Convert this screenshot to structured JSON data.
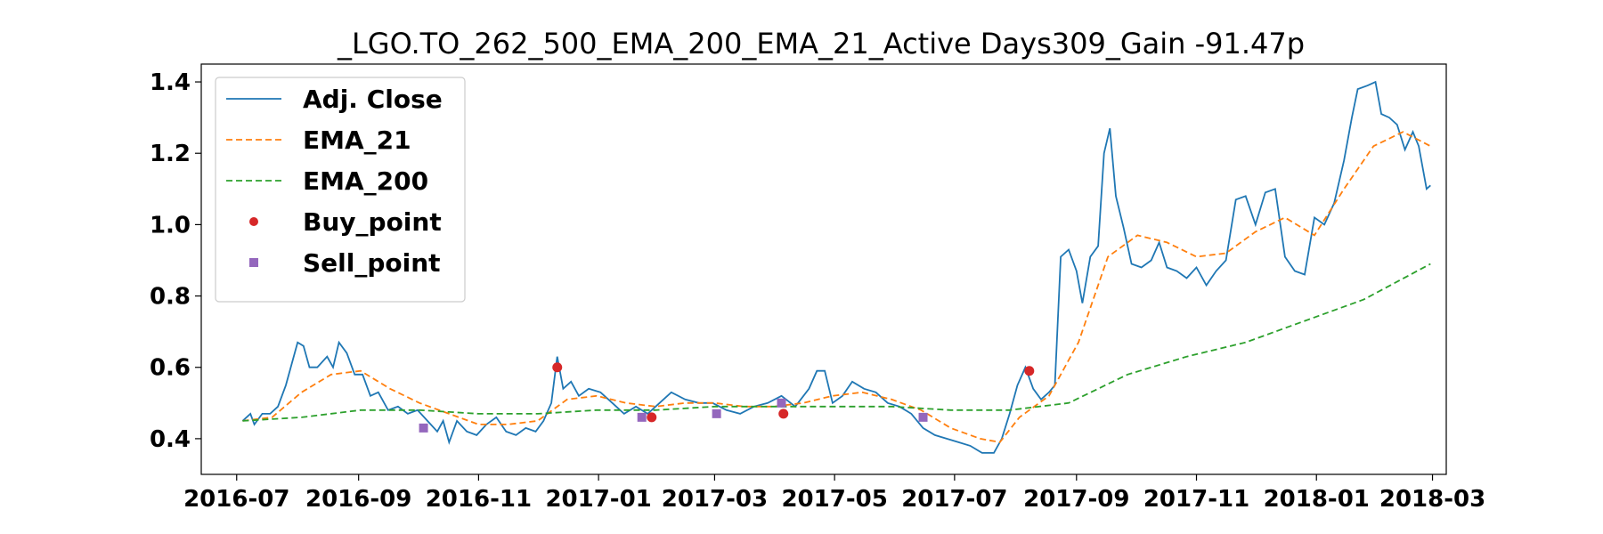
{
  "chart_data": {
    "type": "line",
    "title": "_LGO.TO_262_500_EMA_200_EMA_21_Active Days309_Gain -91.47p",
    "xlabel": "",
    "ylabel": "",
    "xlim": [
      "2016-06-13",
      "2018-03-08"
    ],
    "ylim": [
      0.3,
      1.45
    ],
    "x_ticks": [
      "2016-07",
      "2016-09",
      "2016-11",
      "2017-01",
      "2017-03",
      "2017-05",
      "2017-07",
      "2017-09",
      "2017-11",
      "2018-01",
      "2018-03"
    ],
    "y_ticks": [
      "0.4",
      "0.6",
      "0.8",
      "1.0",
      "1.2",
      "1.4"
    ],
    "legend_position": "upper-left",
    "grid": false,
    "series": [
      {
        "name": "Adj. Close",
        "style": "solid",
        "color": "#1f77b4",
        "points": [
          [
            "2016-07-04",
            0.45
          ],
          [
            "2016-07-08",
            0.47
          ],
          [
            "2016-07-10",
            0.44
          ],
          [
            "2016-07-14",
            0.47
          ],
          [
            "2016-07-18",
            0.47
          ],
          [
            "2016-07-22",
            0.49
          ],
          [
            "2016-07-26",
            0.55
          ],
          [
            "2016-07-29",
            0.61
          ],
          [
            "2016-08-01",
            0.67
          ],
          [
            "2016-08-04",
            0.66
          ],
          [
            "2016-08-07",
            0.6
          ],
          [
            "2016-08-11",
            0.6
          ],
          [
            "2016-08-16",
            0.63
          ],
          [
            "2016-08-19",
            0.6
          ],
          [
            "2016-08-22",
            0.67
          ],
          [
            "2016-08-26",
            0.64
          ],
          [
            "2016-08-30",
            0.58
          ],
          [
            "2016-09-03",
            0.58
          ],
          [
            "2016-09-07",
            0.52
          ],
          [
            "2016-09-11",
            0.53
          ],
          [
            "2016-09-16",
            0.48
          ],
          [
            "2016-09-21",
            0.49
          ],
          [
            "2016-09-26",
            0.47
          ],
          [
            "2016-10-01",
            0.48
          ],
          [
            "2016-10-06",
            0.45
          ],
          [
            "2016-10-11",
            0.42
          ],
          [
            "2016-10-14",
            0.45
          ],
          [
            "2016-10-17",
            0.39
          ],
          [
            "2016-10-21",
            0.45
          ],
          [
            "2016-10-26",
            0.42
          ],
          [
            "2016-10-31",
            0.41
          ],
          [
            "2016-11-05",
            0.44
          ],
          [
            "2016-11-10",
            0.46
          ],
          [
            "2016-11-15",
            0.42
          ],
          [
            "2016-11-20",
            0.41
          ],
          [
            "2016-11-25",
            0.43
          ],
          [
            "2016-11-30",
            0.42
          ],
          [
            "2016-12-04",
            0.45
          ],
          [
            "2016-12-08",
            0.5
          ],
          [
            "2016-12-11",
            0.63
          ],
          [
            "2016-12-14",
            0.54
          ],
          [
            "2016-12-18",
            0.56
          ],
          [
            "2016-12-22",
            0.52
          ],
          [
            "2016-12-27",
            0.54
          ],
          [
            "2017-01-02",
            0.53
          ],
          [
            "2017-01-08",
            0.5
          ],
          [
            "2017-01-14",
            0.47
          ],
          [
            "2017-01-20",
            0.49
          ],
          [
            "2017-01-26",
            0.47
          ],
          [
            "2017-02-01",
            0.5
          ],
          [
            "2017-02-07",
            0.53
          ],
          [
            "2017-02-14",
            0.51
          ],
          [
            "2017-02-21",
            0.5
          ],
          [
            "2017-02-28",
            0.5
          ],
          [
            "2017-03-07",
            0.48
          ],
          [
            "2017-03-14",
            0.47
          ],
          [
            "2017-03-21",
            0.49
          ],
          [
            "2017-03-28",
            0.5
          ],
          [
            "2017-04-04",
            0.52
          ],
          [
            "2017-04-11",
            0.49
          ],
          [
            "2017-04-18",
            0.54
          ],
          [
            "2017-04-22",
            0.59
          ],
          [
            "2017-04-26",
            0.59
          ],
          [
            "2017-04-30",
            0.5
          ],
          [
            "2017-05-05",
            0.52
          ],
          [
            "2017-05-10",
            0.56
          ],
          [
            "2017-05-16",
            0.54
          ],
          [
            "2017-05-22",
            0.53
          ],
          [
            "2017-05-28",
            0.5
          ],
          [
            "2017-06-03",
            0.49
          ],
          [
            "2017-06-09",
            0.47
          ],
          [
            "2017-06-15",
            0.43
          ],
          [
            "2017-06-21",
            0.41
          ],
          [
            "2017-06-27",
            0.4
          ],
          [
            "2017-07-03",
            0.39
          ],
          [
            "2017-07-09",
            0.38
          ],
          [
            "2017-07-15",
            0.36
          ],
          [
            "2017-07-21",
            0.36
          ],
          [
            "2017-07-25",
            0.4
          ],
          [
            "2017-07-29",
            0.47
          ],
          [
            "2017-08-02",
            0.55
          ],
          [
            "2017-08-06",
            0.6
          ],
          [
            "2017-08-10",
            0.54
          ],
          [
            "2017-08-14",
            0.51
          ],
          [
            "2017-08-18",
            0.53
          ],
          [
            "2017-08-21",
            0.55
          ],
          [
            "2017-08-24",
            0.91
          ],
          [
            "2017-08-28",
            0.93
          ],
          [
            "2017-09-01",
            0.87
          ],
          [
            "2017-09-04",
            0.78
          ],
          [
            "2017-09-08",
            0.91
          ],
          [
            "2017-09-12",
            0.94
          ],
          [
            "2017-09-15",
            1.2
          ],
          [
            "2017-09-18",
            1.27
          ],
          [
            "2017-09-21",
            1.08
          ],
          [
            "2017-09-25",
            0.99
          ],
          [
            "2017-09-29",
            0.89
          ],
          [
            "2017-10-04",
            0.88
          ],
          [
            "2017-10-09",
            0.9
          ],
          [
            "2017-10-13",
            0.95
          ],
          [
            "2017-10-17",
            0.88
          ],
          [
            "2017-10-22",
            0.87
          ],
          [
            "2017-10-27",
            0.85
          ],
          [
            "2017-11-01",
            0.88
          ],
          [
            "2017-11-06",
            0.83
          ],
          [
            "2017-11-11",
            0.87
          ],
          [
            "2017-11-16",
            0.9
          ],
          [
            "2017-11-21",
            1.07
          ],
          [
            "2017-11-26",
            1.08
          ],
          [
            "2017-12-01",
            1.0
          ],
          [
            "2017-12-06",
            1.09
          ],
          [
            "2017-12-11",
            1.1
          ],
          [
            "2017-12-16",
            0.91
          ],
          [
            "2017-12-21",
            0.87
          ],
          [
            "2017-12-26",
            0.86
          ],
          [
            "2017-12-31",
            1.02
          ],
          [
            "2018-01-05",
            1.0
          ],
          [
            "2018-01-10",
            1.06
          ],
          [
            "2018-01-15",
            1.18
          ],
          [
            "2018-01-19",
            1.3
          ],
          [
            "2018-01-22",
            1.38
          ],
          [
            "2018-01-27",
            1.39
          ],
          [
            "2018-01-31",
            1.4
          ],
          [
            "2018-02-03",
            1.31
          ],
          [
            "2018-02-07",
            1.3
          ],
          [
            "2018-02-11",
            1.28
          ],
          [
            "2018-02-15",
            1.21
          ],
          [
            "2018-02-19",
            1.26
          ],
          [
            "2018-02-22",
            1.22
          ],
          [
            "2018-02-26",
            1.1
          ],
          [
            "2018-02-28",
            1.11
          ]
        ]
      },
      {
        "name": "EMA_21",
        "style": "dashed",
        "color": "#ff7f0e",
        "points": [
          [
            "2016-07-04",
            0.45
          ],
          [
            "2016-07-19",
            0.46
          ],
          [
            "2016-08-03",
            0.53
          ],
          [
            "2016-08-18",
            0.58
          ],
          [
            "2016-09-02",
            0.59
          ],
          [
            "2016-09-17",
            0.54
          ],
          [
            "2016-10-02",
            0.5
          ],
          [
            "2016-10-17",
            0.47
          ],
          [
            "2016-11-01",
            0.44
          ],
          [
            "2016-11-16",
            0.44
          ],
          [
            "2016-12-01",
            0.45
          ],
          [
            "2016-12-16",
            0.51
          ],
          [
            "2016-12-31",
            0.52
          ],
          [
            "2017-01-15",
            0.5
          ],
          [
            "2017-01-30",
            0.49
          ],
          [
            "2017-02-14",
            0.5
          ],
          [
            "2017-03-01",
            0.5
          ],
          [
            "2017-03-16",
            0.49
          ],
          [
            "2017-03-31",
            0.49
          ],
          [
            "2017-04-15",
            0.5
          ],
          [
            "2017-04-30",
            0.52
          ],
          [
            "2017-05-15",
            0.53
          ],
          [
            "2017-05-30",
            0.51
          ],
          [
            "2017-06-14",
            0.48
          ],
          [
            "2017-06-29",
            0.43
          ],
          [
            "2017-07-14",
            0.4
          ],
          [
            "2017-07-24",
            0.39
          ],
          [
            "2017-08-03",
            0.46
          ],
          [
            "2017-08-18",
            0.52
          ],
          [
            "2017-09-02",
            0.67
          ],
          [
            "2017-09-17",
            0.91
          ],
          [
            "2017-10-02",
            0.97
          ],
          [
            "2017-10-17",
            0.95
          ],
          [
            "2017-11-01",
            0.91
          ],
          [
            "2017-11-16",
            0.92
          ],
          [
            "2017-12-01",
            0.98
          ],
          [
            "2017-12-16",
            1.02
          ],
          [
            "2017-12-31",
            0.97
          ],
          [
            "2018-01-15",
            1.1
          ],
          [
            "2018-01-30",
            1.22
          ],
          [
            "2018-02-14",
            1.26
          ],
          [
            "2018-02-28",
            1.22
          ]
        ]
      },
      {
        "name": "EMA_200",
        "style": "dashed",
        "color": "#2ca02c",
        "points": [
          [
            "2016-07-04",
            0.45
          ],
          [
            "2016-08-03",
            0.46
          ],
          [
            "2016-09-02",
            0.48
          ],
          [
            "2016-10-02",
            0.48
          ],
          [
            "2016-11-01",
            0.47
          ],
          [
            "2016-12-01",
            0.47
          ],
          [
            "2016-12-31",
            0.48
          ],
          [
            "2017-01-30",
            0.48
          ],
          [
            "2017-03-01",
            0.49
          ],
          [
            "2017-03-31",
            0.49
          ],
          [
            "2017-04-30",
            0.49
          ],
          [
            "2017-05-30",
            0.49
          ],
          [
            "2017-06-29",
            0.48
          ],
          [
            "2017-07-29",
            0.48
          ],
          [
            "2017-08-28",
            0.5
          ],
          [
            "2017-09-27",
            0.58
          ],
          [
            "2017-10-27",
            0.63
          ],
          [
            "2017-11-26",
            0.67
          ],
          [
            "2017-12-26",
            0.73
          ],
          [
            "2018-01-25",
            0.79
          ],
          [
            "2018-02-28",
            0.89
          ]
        ]
      }
    ],
    "markers": [
      {
        "name": "Buy_point",
        "shape": "circle",
        "color": "#d62728",
        "points": [
          [
            "2016-12-11",
            0.6
          ],
          [
            "2017-01-28",
            0.46
          ],
          [
            "2017-04-05",
            0.47
          ],
          [
            "2017-08-08",
            0.59
          ]
        ]
      },
      {
        "name": "Sell_point",
        "shape": "square",
        "color": "#9467bd",
        "points": [
          [
            "2016-10-04",
            0.43
          ],
          [
            "2017-01-23",
            0.46
          ],
          [
            "2017-03-02",
            0.47
          ],
          [
            "2017-04-04",
            0.5
          ],
          [
            "2017-06-15",
            0.46
          ]
        ]
      }
    ]
  }
}
